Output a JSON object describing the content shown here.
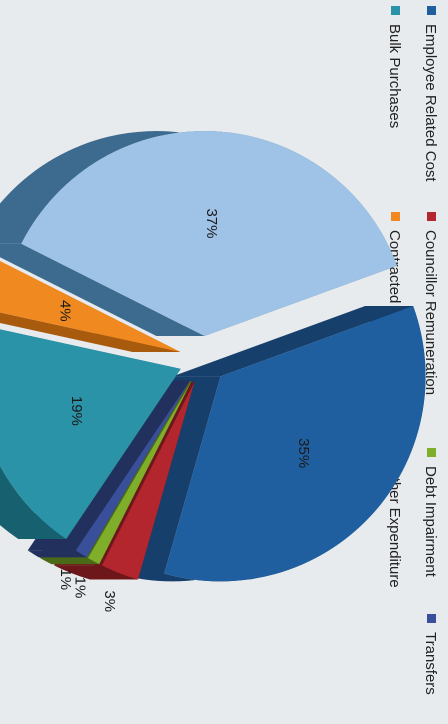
{
  "chart_data": {
    "type": "pie",
    "title": "",
    "legend": {
      "placement": "left (rotated)",
      "items": [
        {
          "label": "Employee Related Cost",
          "color": "#1f5fa0"
        },
        {
          "label": "Councillor Remuneration",
          "color": "#b3262e"
        },
        {
          "label": "Debt Impairment",
          "color": "#7fae2a"
        },
        {
          "label": "Transfers",
          "color": "#3a4f9a"
        },
        {
          "label": "Bulk Purchases",
          "color": "#2a93a8"
        },
        {
          "label": "Contracted Services",
          "color": "#f08a20"
        },
        {
          "label": "Other Expenditure",
          "color": "#9ec3e6"
        }
      ]
    },
    "slices": [
      {
        "label": "Employee Related Cost",
        "value": 35,
        "value_label": "35%",
        "color": "#1f5fa0",
        "side": "#163f6b"
      },
      {
        "label": "Councillor Remuneration",
        "value": 3,
        "value_label": "3%",
        "color": "#b3262e",
        "side": "#6e171b"
      },
      {
        "label": "Debt Impairment",
        "value": 1,
        "value_label": "1%",
        "color": "#7fae2a",
        "side": "#4a6a17"
      },
      {
        "label": "Transfers",
        "value": 1,
        "value_label": "1%",
        "color": "#3a4f9a",
        "side": "#22305e"
      },
      {
        "label": "Bulk Purchases",
        "value": 19,
        "value_label": "19%",
        "color": "#2a93a8",
        "side": "#176070"
      },
      {
        "label": "Contracted Services",
        "value": 4,
        "value_label": "4%",
        "color": "#f08a20",
        "side": "#a85a0d"
      },
      {
        "label": "Other Expenditure",
        "value": 37,
        "value_label": "37%",
        "color": "#9ec3e6",
        "side": "#3d6b8f"
      }
    ]
  }
}
